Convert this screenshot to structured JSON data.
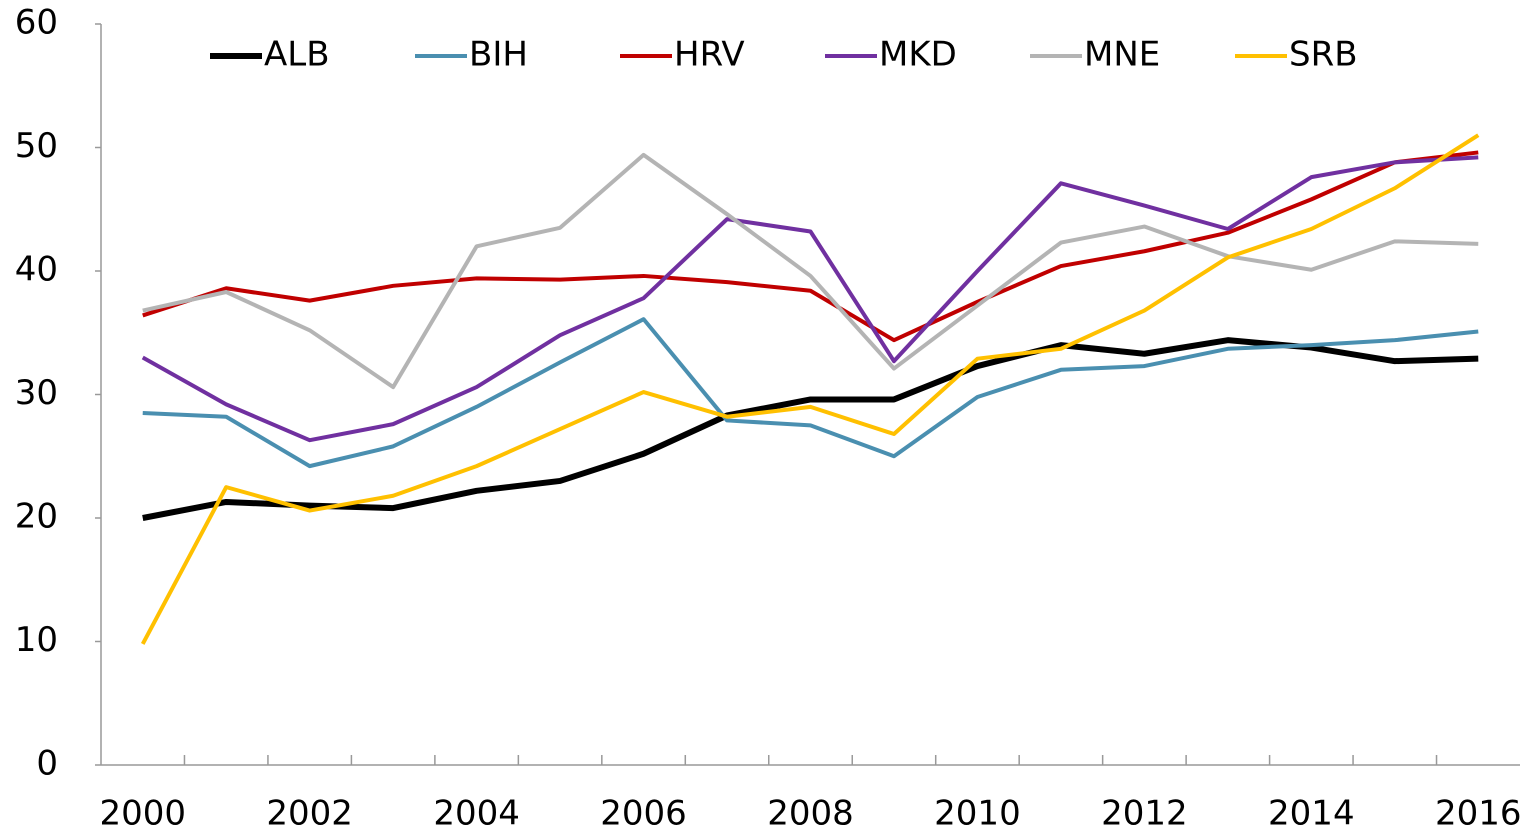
{
  "chart_data": {
    "type": "line",
    "categories": [
      "2000",
      null,
      "2002",
      null,
      "2004",
      null,
      "2006",
      null,
      "2008",
      null,
      "2010",
      null,
      "2012",
      null,
      "2014",
      null,
      "2016"
    ],
    "series": [
      {
        "name": "ALB",
        "color": "#000000",
        "values": [
          20,
          21.3,
          21,
          20.8,
          22.2,
          23,
          25.2,
          28.3,
          29.6,
          29.6,
          32.3,
          34,
          33.3,
          34.4,
          33.8,
          32.7,
          32.9
        ]
      },
      {
        "name": "BIH",
        "color": "#4a8fb0",
        "values": [
          28.5,
          28.2,
          24.2,
          25.8,
          29,
          32.6,
          36.1,
          27.9,
          27.5,
          25,
          29.8,
          32,
          32.3,
          33.7,
          34,
          34.4,
          35.1
        ]
      },
      {
        "name": "HRV",
        "color": "#c00000",
        "values": [
          36.4,
          38.6,
          37.6,
          38.8,
          39.4,
          39.3,
          39.6,
          39.1,
          38.4,
          34.4,
          37.5,
          40.4,
          41.6,
          43.1,
          45.8,
          48.8,
          49.6
        ]
      },
      {
        "name": "MKD",
        "color": "#7030a0",
        "values": [
          33,
          29.2,
          26.3,
          27.6,
          30.6,
          34.8,
          37.8,
          44.2,
          43.2,
          32.7,
          40,
          47.1,
          45.3,
          43.4,
          47.6,
          48.8,
          49.2
        ]
      },
      {
        "name": "MNE",
        "color": "#b4b4b4",
        "values": [
          36.8,
          38.3,
          35.2,
          30.6,
          42,
          43.5,
          49.4,
          44.6,
          39.6,
          32.1,
          37.2,
          42.3,
          43.6,
          41.2,
          40.1,
          42.4,
          42.2
        ]
      },
      {
        "name": "SRB",
        "color": "#ffc000",
        "values": [
          9.8,
          22.5,
          20.6,
          21.8,
          24.2,
          27.2,
          30.2,
          28.2,
          29,
          26.8,
          32.9,
          33.7,
          36.8,
          41.1,
          43.4,
          46.7,
          51
        ]
      }
    ],
    "ylim": [
      0,
      60
    ],
    "yticks": [
      0,
      10,
      20,
      30,
      40,
      50,
      60
    ],
    "grid": false,
    "legend": "top"
  }
}
